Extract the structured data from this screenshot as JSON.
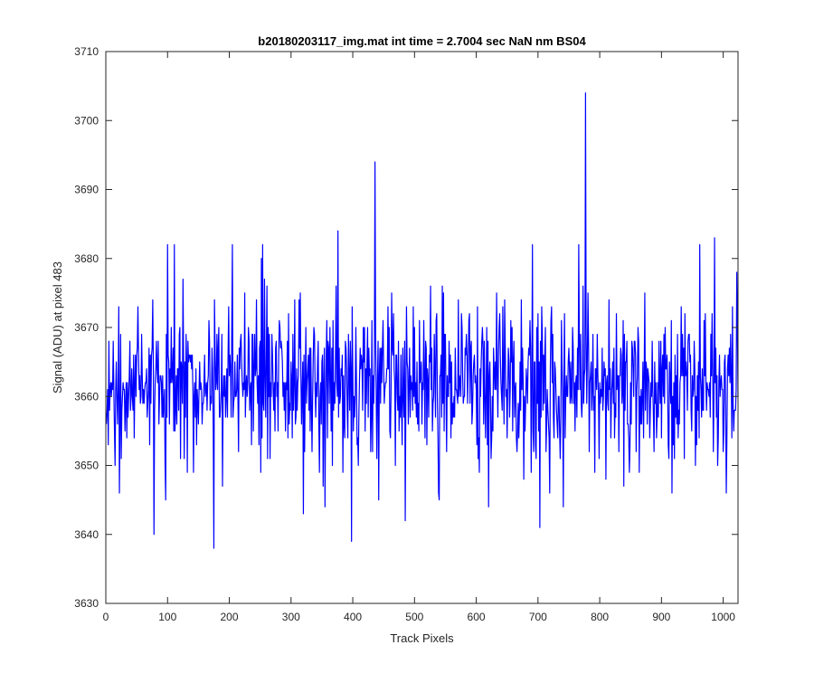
{
  "chart_data": {
    "type": "line",
    "title": "b20180203117_img.mat int time = 2.7004 sec  NaN nm BS04",
    "xlabel": "Track Pixels",
    "ylabel": "Signal (ADU) at pixel 483",
    "xlim": [
      0,
      1024
    ],
    "ylim": [
      3630,
      3710
    ],
    "xticks": [
      0,
      100,
      200,
      300,
      400,
      500,
      600,
      700,
      800,
      900,
      1000
    ],
    "yticks": [
      3630,
      3640,
      3650,
      3660,
      3670,
      3680,
      3690,
      3700,
      3710
    ],
    "grid": false,
    "legend": "none",
    "series": [
      {
        "color": "#0000ff",
        "x_start": 1,
        "x_step": 1,
        "baseline": 3662,
        "noise_seed": 20180203,
        "noise_sd": 6.0,
        "value_range": [
          3638,
          3704
        ],
        "peaks": [
          {
            "x": 78,
            "y": 3640
          },
          {
            "x": 175,
            "y": 3638
          },
          {
            "x": 376,
            "y": 3684
          },
          {
            "x": 398,
            "y": 3639
          },
          {
            "x": 436,
            "y": 3694
          },
          {
            "x": 485,
            "y": 3642
          },
          {
            "x": 703,
            "y": 3641
          },
          {
            "x": 777,
            "y": 3704
          },
          {
            "x": 773,
            "y": 3676
          },
          {
            "x": 100,
            "y": 3682
          },
          {
            "x": 111,
            "y": 3682
          },
          {
            "x": 205,
            "y": 3682
          },
          {
            "x": 254,
            "y": 3682
          },
          {
            "x": 691,
            "y": 3682
          },
          {
            "x": 766,
            "y": 3682
          },
          {
            "x": 962,
            "y": 3682
          },
          {
            "x": 986,
            "y": 3683
          },
          {
            "x": 1022,
            "y": 3678
          },
          {
            "x": 22,
            "y": 3646
          },
          {
            "x": 320,
            "y": 3643
          },
          {
            "x": 540,
            "y": 3645
          },
          {
            "x": 620,
            "y": 3644
          },
          {
            "x": 1005,
            "y": 3646
          }
        ]
      }
    ]
  }
}
